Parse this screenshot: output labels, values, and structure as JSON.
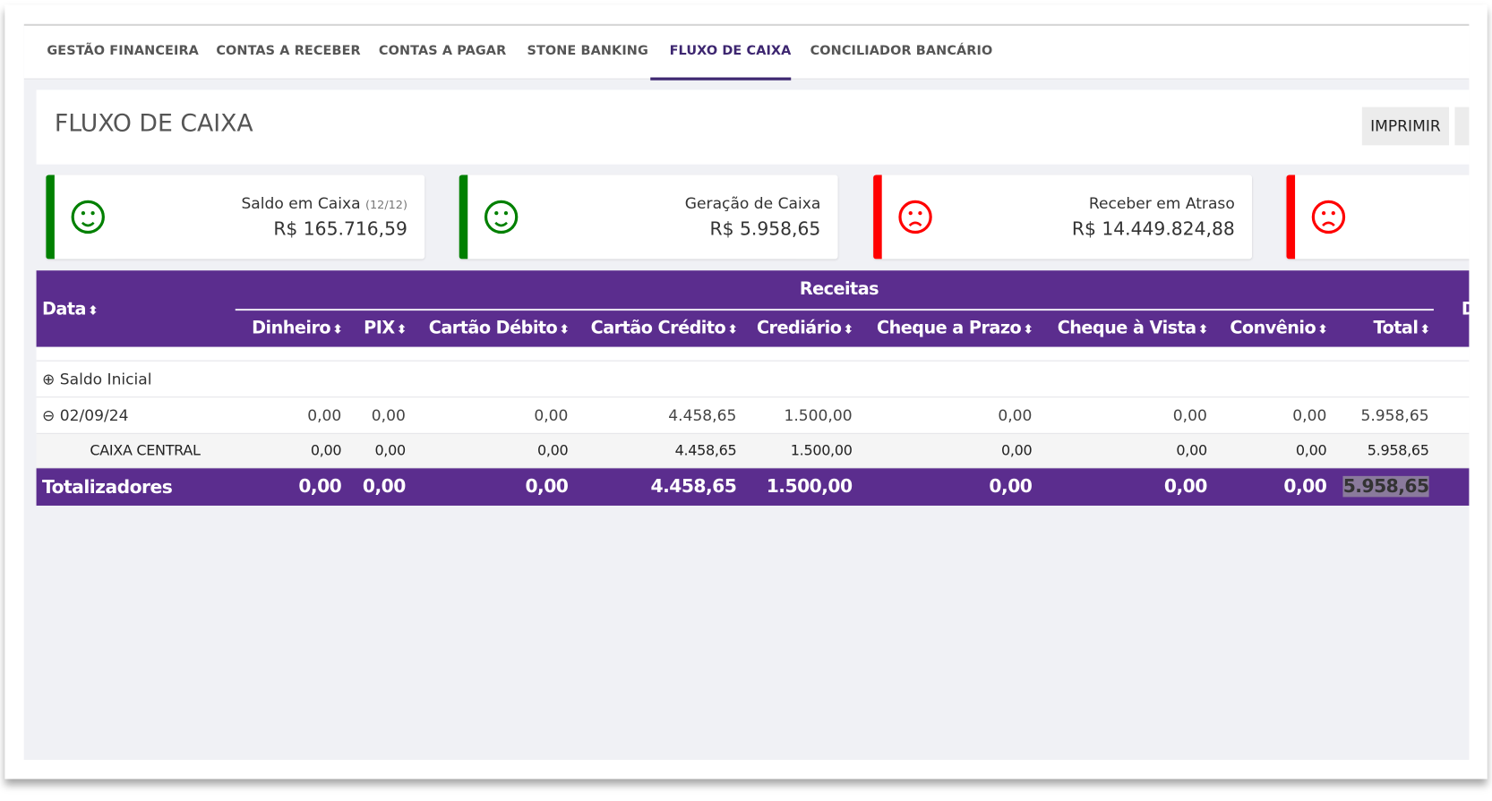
{
  "tabs": [
    {
      "label": "GESTÃO FINANCEIRA",
      "active": false
    },
    {
      "label": "CONTAS A RECEBER",
      "active": false
    },
    {
      "label": "CONTAS A PAGAR",
      "active": false
    },
    {
      "label": "STONE BANKING",
      "active": false
    },
    {
      "label": "FLUXO DE CAIXA",
      "active": true
    },
    {
      "label": "CONCILIADOR BANCÁRIO",
      "active": false
    }
  ],
  "header": {
    "title": "FLUXO DE CAIXA",
    "print_label": "IMPRIMIR"
  },
  "colors": {
    "accent": "#5b2d8e",
    "good": "#008000",
    "bad": "#ff0000"
  },
  "kpis": [
    {
      "label": "Saldo em Caixa",
      "sub": "(12/12)",
      "value": "R$ 165.716,59",
      "status": "good",
      "icon": "smile-icon"
    },
    {
      "label": "Geração de Caixa",
      "sub": "",
      "value": "R$ 5.958,65",
      "status": "good",
      "icon": "smile-icon"
    },
    {
      "label": "Receber em Atraso",
      "sub": "",
      "value": "R$ 14.449.824,88",
      "status": "bad",
      "icon": "frown-icon"
    },
    {
      "label": "",
      "sub": "",
      "value": "",
      "status": "bad",
      "icon": "frown-icon"
    }
  ],
  "table": {
    "date_header": "Data",
    "group_header": "Receitas",
    "next_group_partial": "D",
    "columns": [
      "Dinheiro",
      "PIX",
      "Cartão Débito",
      "Cartão Crédito",
      "Crediário",
      "Cheque a Prazo",
      "Cheque à Vista",
      "Convênio",
      "Total"
    ],
    "saldo_inicial": "Saldo Inicial",
    "rows": [
      {
        "label": "02/09/24",
        "values": [
          "0,00",
          "0,00",
          "0,00",
          "4.458,65",
          "1.500,00",
          "0,00",
          "0,00",
          "0,00",
          "5.958,65"
        ]
      },
      {
        "label": "CAIXA CENTRAL",
        "values": [
          "0,00",
          "0,00",
          "0,00",
          "4.458,65",
          "1.500,00",
          "0,00",
          "0,00",
          "0,00",
          "5.958,65"
        ]
      }
    ],
    "totals": {
      "label": "Totalizadores",
      "values": [
        "0,00",
        "0,00",
        "0,00",
        "4.458,65",
        "1.500,00",
        "0,00",
        "0,00",
        "0,00",
        "5.958,65"
      ]
    }
  }
}
